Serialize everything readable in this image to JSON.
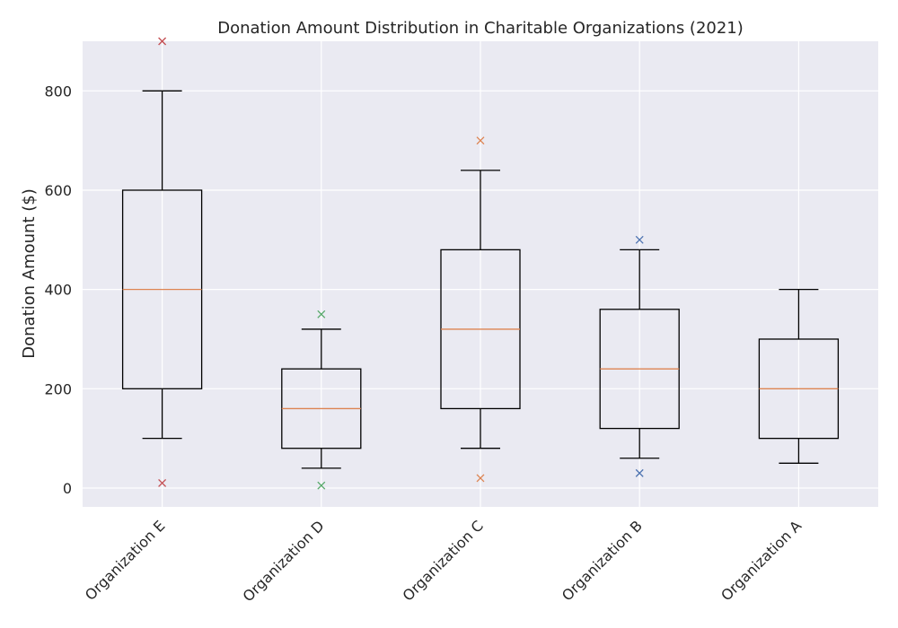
{
  "chart_data": {
    "type": "box",
    "title": "Donation Amount Distribution in Charitable Organizations (2021)",
    "xlabel": "",
    "ylabel": "Donation Amount ($)",
    "ylim": [
      -38,
      900
    ],
    "yticks": [
      0,
      200,
      400,
      600,
      800
    ],
    "grid": true,
    "colors": {
      "background": "#eaeaf2",
      "grid": "#ffffff",
      "box": "#000000",
      "median": "#dd8452"
    },
    "categories": [
      "Organization E",
      "Organization D",
      "Organization C",
      "Organization B",
      "Organization A"
    ],
    "boxes": [
      {
        "category": "Organization E",
        "whisker_low": 100,
        "q1": 200,
        "median": 400,
        "q3": 600,
        "whisker_high": 800,
        "outliers": [
          10,
          900
        ],
        "outlier_color": "#c44e52"
      },
      {
        "category": "Organization D",
        "whisker_low": 40,
        "q1": 80,
        "median": 160,
        "q3": 240,
        "whisker_high": 320,
        "outliers": [
          5,
          350
        ],
        "outlier_color": "#55a868"
      },
      {
        "category": "Organization C",
        "whisker_low": 80,
        "q1": 160,
        "median": 320,
        "q3": 480,
        "whisker_high": 640,
        "outliers": [
          20,
          700
        ],
        "outlier_color": "#dd8452"
      },
      {
        "category": "Organization B",
        "whisker_low": 60,
        "q1": 120,
        "median": 240,
        "q3": 360,
        "whisker_high": 480,
        "outliers": [
          30,
          500
        ],
        "outlier_color": "#4c72b0"
      },
      {
        "category": "Organization A",
        "whisker_low": 50,
        "q1": 100,
        "median": 200,
        "q3": 300,
        "whisker_high": 400,
        "outliers": [],
        "outlier_color": "#8172b3"
      }
    ]
  }
}
